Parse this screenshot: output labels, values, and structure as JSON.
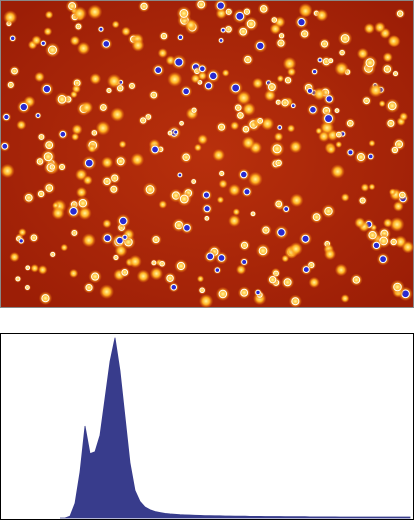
{
  "chart_data": {
    "type": "area",
    "color": "#383c8c",
    "ylim": [
      0,
      100
    ],
    "values": [
      0,
      0,
      1,
      8,
      25,
      50,
      35,
      36,
      45,
      65,
      85,
      98,
      80,
      55,
      30,
      15,
      9,
      6,
      4.5,
      3.5,
      3,
      2.5,
      2.2,
      2,
      1.8,
      1.7,
      1.6,
      1.5,
      1.4,
      1.3,
      1.3,
      1.2,
      1.2,
      1.1,
      1.1,
      1,
      1,
      1,
      0.9,
      0.9,
      0.9,
      0.8,
      0.8,
      0.8,
      0.8,
      0.7,
      0.7,
      0.7,
      0.7,
      0.7,
      0.6,
      0.6,
      0.6,
      0.6,
      0.6,
      0.6,
      0.5,
      0.5,
      0.5,
      0.5,
      0.5,
      0.5,
      0.5,
      0.5,
      0.5,
      0.5,
      0.5,
      0.5,
      0.5,
      0.5,
      0.5
    ]
  }
}
